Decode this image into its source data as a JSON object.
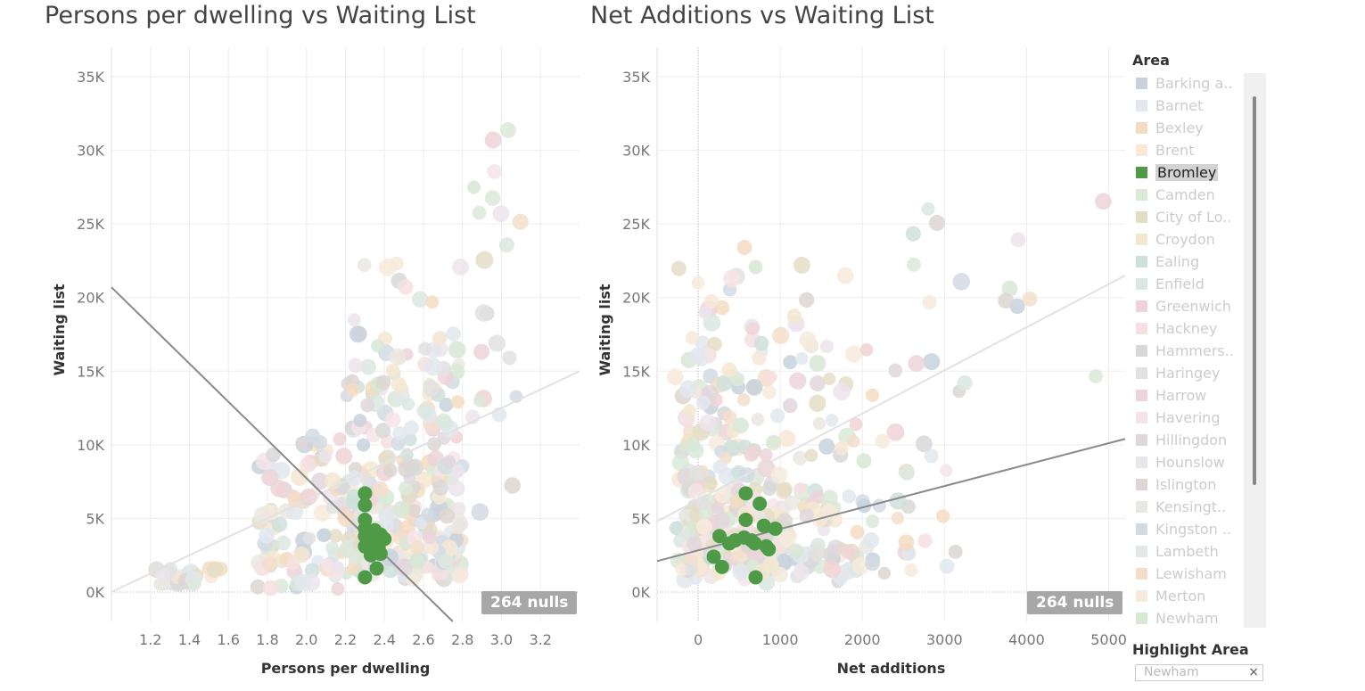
{
  "chart_data": [
    {
      "type": "scatter",
      "title": "Persons per dwelling vs Waiting List",
      "xlabel": "Persons per dwelling",
      "ylabel": "Waiting list",
      "xlim": [
        1.0,
        3.4
      ],
      "ylim": [
        -2000,
        37000
      ],
      "x_ticks": [
        "1.2",
        "1.4",
        "1.6",
        "1.8",
        "2.0",
        "2.2",
        "2.4",
        "2.6",
        "2.8",
        "3.0",
        "3.2"
      ],
      "y_ticks": [
        "0K",
        "5K",
        "10K",
        "15K",
        "20K",
        "25K",
        "30K",
        "35K"
      ],
      "null_note": "264 nulls",
      "highlighted_series": "Bromley",
      "trend_lines": [
        {
          "name": "all",
          "from": [
            1.0,
            0
          ],
          "to": [
            3.4,
            15000
          ]
        },
        {
          "name": "highlight",
          "from": [
            1.0,
            20700
          ],
          "to": [
            2.75,
            -2000
          ]
        }
      ]
    },
    {
      "type": "scatter",
      "title": "Net Additions vs Waiting List",
      "xlabel": "Net additions",
      "ylabel": "Waiting list",
      "xlim": [
        -500,
        5200
      ],
      "ylim": [
        -2000,
        37000
      ],
      "x_ticks": [
        "0",
        "1000",
        "2000",
        "3000",
        "4000",
        "5000"
      ],
      "y_ticks": [
        "0K",
        "5K",
        "10K",
        "15K",
        "20K",
        "25K",
        "30K",
        "35K"
      ],
      "null_note": "264 nulls",
      "highlighted_series": "Bromley",
      "trend_lines": [
        {
          "name": "all",
          "from": [
            -500,
            4800
          ],
          "to": [
            5200,
            21500
          ]
        },
        {
          "name": "highlight",
          "from": [
            -500,
            2100
          ],
          "to": [
            5200,
            10400
          ]
        }
      ]
    }
  ],
  "bromley_points": {
    "persons_per_dwelling": [
      [
        2.3,
        6700
      ],
      [
        2.3,
        5900
      ],
      [
        2.3,
        4900
      ],
      [
        2.3,
        4300
      ],
      [
        2.3,
        3800
      ],
      [
        2.3,
        3100
      ],
      [
        2.35,
        4200
      ],
      [
        2.35,
        3500
      ],
      [
        2.37,
        3000
      ],
      [
        2.38,
        3900
      ],
      [
        2.4,
        3600
      ],
      [
        2.33,
        2500
      ],
      [
        2.38,
        2600
      ],
      [
        2.36,
        1600
      ],
      [
        2.3,
        1000
      ]
    ],
    "net_additions": [
      [
        580,
        6700
      ],
      [
        750,
        6000
      ],
      [
        580,
        4900
      ],
      [
        800,
        4500
      ],
      [
        940,
        4300
      ],
      [
        260,
        3800
      ],
      [
        380,
        3300
      ],
      [
        450,
        3500
      ],
      [
        560,
        3700
      ],
      [
        650,
        3500
      ],
      [
        690,
        3300
      ],
      [
        830,
        3100
      ],
      [
        860,
        2900
      ],
      [
        190,
        2400
      ],
      [
        290,
        1700
      ],
      [
        700,
        1000
      ]
    ]
  },
  "legend": {
    "title": "Area",
    "items": [
      {
        "label": "Barking a..",
        "color": "#c8d2dd"
      },
      {
        "label": "Barnet",
        "color": "#e2e8ef"
      },
      {
        "label": "Bexley",
        "color": "#f4dcc2"
      },
      {
        "label": "Brent",
        "color": "#f7e8d8"
      },
      {
        "label": "Bromley",
        "color": "#4e9a46",
        "active": true
      },
      {
        "label": "Camden",
        "color": "#dbe9d8"
      },
      {
        "label": "City of Lo..",
        "color": "#e4ddc6"
      },
      {
        "label": "Croydon",
        "color": "#f3e7d0"
      },
      {
        "label": "Ealing",
        "color": "#cfe0dc"
      },
      {
        "label": "Enfield",
        "color": "#dae8e2"
      },
      {
        "label": "Greenwich",
        "color": "#f0d3d6"
      },
      {
        "label": "Hackney",
        "color": "#f6e0e2"
      },
      {
        "label": "Hammers..",
        "color": "#d8d8d8"
      },
      {
        "label": "Haringey",
        "color": "#e2e2e2"
      },
      {
        "label": "Harrow",
        "color": "#ecd4da"
      },
      {
        "label": "Havering",
        "color": "#f4e4e8"
      },
      {
        "label": "Hillingdon",
        "color": "#e0d7dc"
      },
      {
        "label": "Hounslow",
        "color": "#ece4ec"
      },
      {
        "label": "Islington",
        "color": "#ddd6d2"
      },
      {
        "label": "Kensingt..",
        "color": "#ebe6e1"
      },
      {
        "label": "Kingston ..",
        "color": "#d2dbe4"
      },
      {
        "label": "Lambeth",
        "color": "#e2e7ec"
      },
      {
        "label": "Lewisham",
        "color": "#f3decb"
      },
      {
        "label": "Merton",
        "color": "#f6eadc"
      },
      {
        "label": "Newham",
        "color": "#d8e8d6"
      }
    ]
  },
  "highlight_filter": {
    "title": "Highlight Area",
    "value": "Newham",
    "clear_icon": "×"
  }
}
